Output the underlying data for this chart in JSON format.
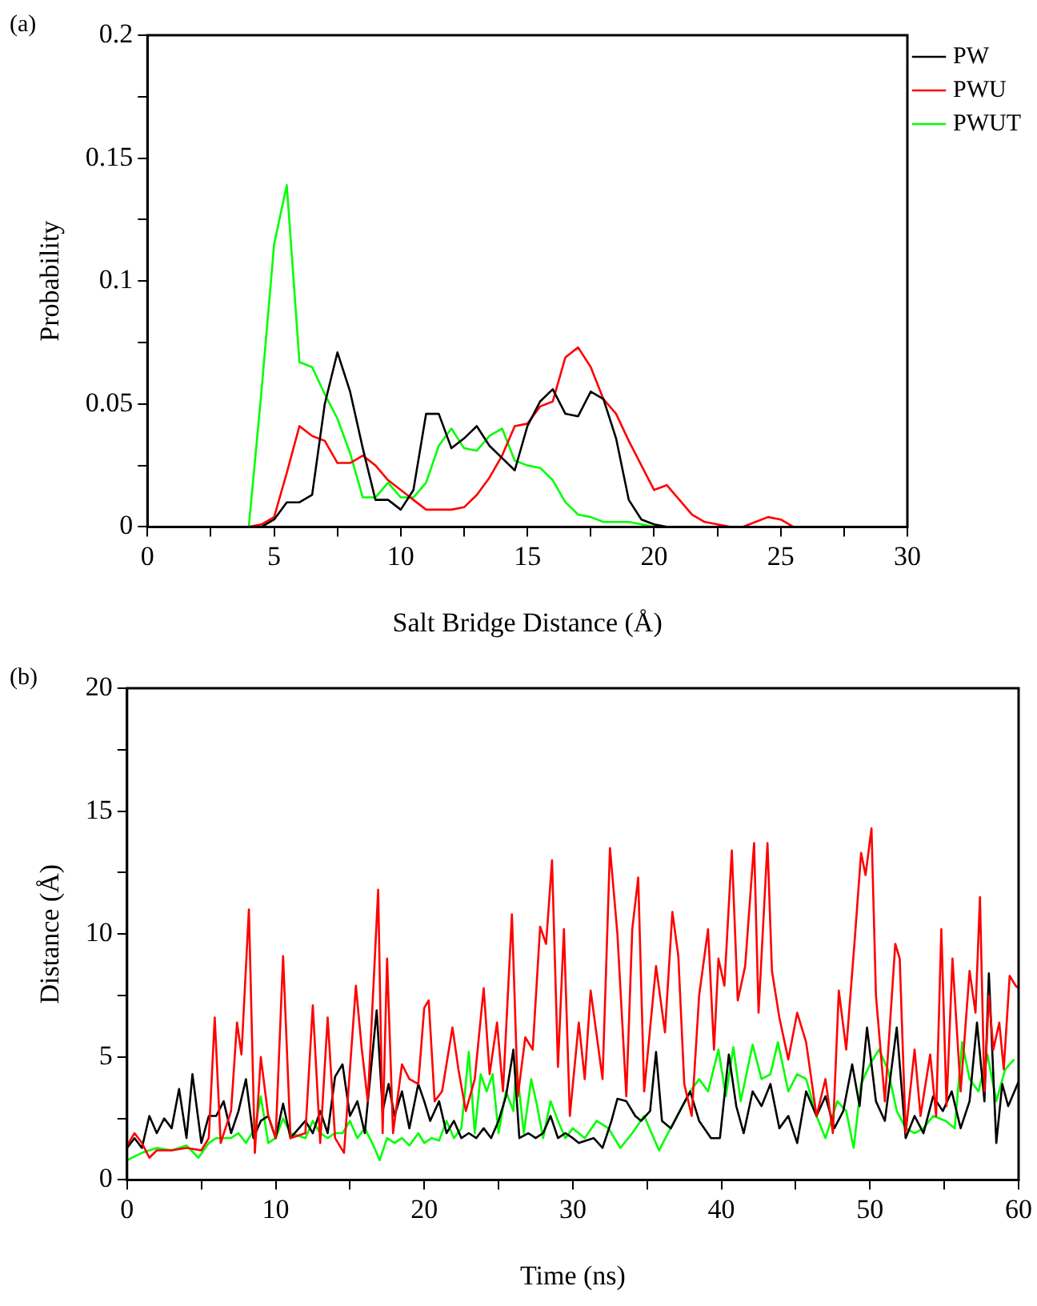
{
  "chart_data": [
    {
      "type": "line",
      "xlabel": "Salt Bridge Distance (Å)",
      "ylabel": "Probability",
      "annotations": [
        "(a)"
      ],
      "xlim": [
        0,
        30
      ],
      "ylim": [
        0,
        0.2
      ],
      "xticks": [
        0,
        {
          "value": 2.5,
          "label": null
        },
        5,
        {
          "value": 7.5,
          "label": null
        },
        10,
        {
          "value": 12.5,
          "label": null
        },
        15,
        {
          "value": 17.5,
          "label": null
        },
        20,
        {
          "value": 22.5,
          "label": null
        },
        25,
        {
          "value": 27.5,
          "label": null
        },
        30
      ],
      "yticks": [
        0,
        {
          "value": 0.025,
          "label": null
        },
        0.05,
        {
          "value": 0.075,
          "label": null
        },
        0.1,
        {
          "value": 0.125,
          "label": null
        },
        0.15,
        {
          "value": 0.175,
          "label": null
        },
        0.2
      ],
      "legend": "top right",
      "marker": "none",
      "line_style": "solid",
      "series": [
        {
          "name": "PW",
          "color": "#000000",
          "x": [
            4.5,
            5,
            5.5,
            6,
            6.5,
            7,
            7.5,
            8,
            8.5,
            9,
            9.5,
            10,
            10.5,
            11,
            11.5,
            12,
            12.5,
            13,
            13.5,
            14,
            14.5,
            15,
            15.5,
            16,
            16.5,
            17,
            17.5,
            18,
            18.5,
            19,
            19.5,
            20,
            20.5
          ],
          "values": [
            0,
            0.003,
            0.01,
            0.01,
            0.013,
            0.05,
            0.071,
            0.055,
            0.032,
            0.011,
            0.011,
            0.007,
            0.015,
            0.046,
            0.046,
            0.032,
            0.036,
            0.041,
            0.033,
            0.028,
            0.023,
            0.041,
            0.051,
            0.056,
            0.046,
            0.045,
            0.055,
            0.052,
            0.036,
            0.011,
            0.003,
            0.001,
            0
          ]
        },
        {
          "name": "PWU",
          "color": "#ff0000",
          "x": [
            4,
            4.5,
            5,
            5.5,
            6,
            6.5,
            7,
            7.5,
            8,
            8.5,
            9,
            9.5,
            10,
            10.5,
            11,
            11.5,
            12,
            12.5,
            13,
            13.5,
            14,
            14.5,
            15,
            15.5,
            16,
            16.5,
            17,
            17.5,
            18,
            18.5,
            19,
            19.5,
            20,
            20.5,
            21,
            21.5,
            22,
            22.5,
            23,
            23.5,
            24,
            24.5,
            25,
            25.5
          ],
          "values": [
            0,
            0.001,
            0.004,
            0.022,
            0.041,
            0.037,
            0.035,
            0.026,
            0.026,
            0.029,
            0.025,
            0.019,
            0.015,
            0.011,
            0.007,
            0.007,
            0.007,
            0.008,
            0.013,
            0.02,
            0.029,
            0.041,
            0.042,
            0.049,
            0.051,
            0.069,
            0.073,
            0.065,
            0.052,
            0.046,
            0.035,
            0.025,
            0.015,
            0.017,
            0.011,
            0.005,
            0.002,
            0.001,
            0,
            0,
            0.002,
            0.004,
            0.003,
            0
          ]
        },
        {
          "name": "PWUT",
          "color": "#00ff00",
          "x": [
            4,
            4.5,
            5,
            5.5,
            6,
            6.5,
            7,
            7.5,
            8,
            8.5,
            9,
            9.5,
            10,
            10.5,
            11,
            11.5,
            12,
            12.5,
            13,
            13.5,
            14,
            14.5,
            15,
            15.5,
            16,
            16.5,
            17,
            17.5,
            18,
            18.5,
            19,
            19.5,
            20
          ],
          "values": [
            0,
            0.055,
            0.115,
            0.139,
            0.067,
            0.065,
            0.054,
            0.044,
            0.03,
            0.012,
            0.012,
            0.018,
            0.012,
            0.012,
            0.018,
            0.033,
            0.04,
            0.032,
            0.031,
            0.037,
            0.04,
            0.027,
            0.025,
            0.024,
            0.019,
            0.01,
            0.005,
            0.004,
            0.002,
            0.002,
            0.002,
            0.001,
            0
          ]
        }
      ]
    },
    {
      "type": "line",
      "xlabel": "Time (ns)",
      "ylabel": "Distance (Å)",
      "annotations": [
        "(b)"
      ],
      "xlim": [
        0,
        60
      ],
      "ylim": [
        0,
        20
      ],
      "xticks": [
        0,
        {
          "value": 5,
          "label": null
        },
        10,
        {
          "value": 15,
          "label": null
        },
        20,
        {
          "value": 25,
          "label": null
        },
        30,
        {
          "value": 35,
          "label": null
        },
        40,
        {
          "value": 45,
          "label": null
        },
        50,
        {
          "value": 55,
          "label": null
        },
        60
      ],
      "yticks": [
        0,
        {
          "value": 2.5,
          "label": null
        },
        5,
        {
          "value": 7.5,
          "label": null
        },
        10,
        {
          "value": 12.5,
          "label": null
        },
        15,
        {
          "value": 17.5,
          "label": null
        },
        20
      ],
      "marker": "none",
      "line_style": "solid",
      "series": [
        {
          "color": "#ff0000",
          "x": [
            0,
            0.5,
            1,
            1.5,
            2,
            3,
            4,
            5,
            5.5,
            5.9,
            6.3,
            7,
            7.4,
            7.7,
            8.2,
            8.6,
            9,
            9.5,
            10,
            10.5,
            11,
            12,
            12.5,
            13,
            13.5,
            14,
            14.6,
            15,
            15.4,
            15.8,
            16.2,
            16.9,
            17.2,
            17.5,
            17.9,
            18.5,
            19,
            19.6,
            20,
            20.3,
            20.7,
            21.2,
            21.9,
            22.3,
            22.8,
            23.4,
            24,
            24.4,
            24.9,
            25.3,
            25.9,
            26.3,
            26.8,
            27.3,
            27.8,
            28.2,
            28.6,
            29,
            29.4,
            29.8,
            30.4,
            30.8,
            31.2,
            32,
            32.5,
            33,
            33.6,
            34,
            34.4,
            34.8,
            35.6,
            36.2,
            36.7,
            37.1,
            37.5,
            38,
            38.5,
            39.1,
            39.5,
            39.8,
            40.2,
            40.7,
            41.1,
            41.6,
            42.2,
            42.5,
            43.1,
            43.4,
            43.9,
            44.5,
            45.1,
            45.7,
            46.4,
            47,
            47.5,
            47.9,
            48.4,
            49,
            49.4,
            49.7,
            50.1,
            50.4,
            51,
            51.7,
            52,
            52.4,
            53,
            53.4,
            54.05,
            54.45,
            54.8,
            55.15,
            55.55,
            56.1,
            56.7,
            57.1,
            57.4,
            57.7,
            58,
            58.3,
            58.7,
            59,
            59.4,
            59.8,
            60
          ],
          "values": [
            1.4,
            1.9,
            1.5,
            0.9,
            1.2,
            1.2,
            1.3,
            1.2,
            1.7,
            6.6,
            1.5,
            2.8,
            6.4,
            5.1,
            11,
            1.1,
            5,
            2.6,
            1.7,
            9.1,
            1.7,
            1.9,
            7.1,
            1.5,
            6.6,
            1.7,
            1.1,
            4.5,
            7.9,
            5.3,
            3.2,
            11.8,
            1.9,
            9,
            1.9,
            4.7,
            4.1,
            3.9,
            7,
            7.3,
            3.2,
            3.6,
            6.2,
            4.5,
            2.8,
            4.1,
            7.8,
            4.3,
            6.4,
            3.6,
            10.8,
            3.4,
            5.8,
            5.3,
            10.3,
            9.6,
            13,
            4.6,
            10.2,
            2.6,
            6.4,
            4.1,
            7.7,
            4.1,
            13.5,
            10,
            3.4,
            10.2,
            12.3,
            3.6,
            8.7,
            6,
            10.9,
            9.1,
            3.9,
            2.6,
            7.5,
            10.2,
            5.3,
            9,
            7.9,
            13.4,
            7.3,
            8.7,
            13.7,
            6.8,
            13.7,
            8.5,
            6.6,
            4.9,
            6.8,
            5.6,
            2.6,
            4.1,
            1.9,
            7.7,
            5.3,
            10,
            13.3,
            12.4,
            14.3,
            7.5,
            3.2,
            9.6,
            9,
            1.9,
            5.3,
            2.6,
            5.1,
            2.6,
            10.2,
            3,
            9,
            3.6,
            8.5,
            6.8,
            11.5,
            3.6,
            7.5,
            5.3,
            6.4,
            4.5,
            8.3,
            7.9,
            7.8
          ]
        },
        {
          "color": "#000000",
          "x": [
            0,
            0.5,
            1,
            1.5,
            2,
            2.5,
            3,
            3.5,
            4,
            4.4,
            5,
            5.5,
            6,
            6.5,
            7,
            7.5,
            8,
            8.5,
            9,
            9.5,
            10,
            10.5,
            11,
            12,
            12.5,
            13,
            13.5,
            14,
            14.5,
            15,
            15.5,
            16,
            16.8,
            17.2,
            17.6,
            18,
            18.5,
            19,
            19.6,
            20,
            20.4,
            21,
            21.5,
            22,
            22.5,
            23,
            23.5,
            24,
            24.5,
            25,
            25.5,
            26,
            26.4,
            27,
            27.5,
            28,
            28.5,
            29,
            29.5,
            30,
            30.4,
            31.4,
            32,
            32.6,
            33,
            33.6,
            34.2,
            34.6,
            35.2,
            35.6,
            36,
            36.6,
            37.2,
            37.9,
            38.5,
            39.3,
            39.9,
            40.5,
            41,
            41.5,
            42.1,
            42.7,
            43.3,
            43.9,
            44.5,
            45.1,
            45.7,
            46.4,
            47,
            47.6,
            48.2,
            48.8,
            49.3,
            49.8,
            50.4,
            51,
            51.8,
            52.4,
            53,
            53.6,
            54.25,
            54.9,
            55.5,
            56.1,
            56.7,
            57.2,
            57.7,
            58,
            58.5,
            58.9,
            59.3,
            60
          ],
          "values": [
            1.3,
            1.7,
            1.3,
            2.6,
            1.9,
            2.5,
            2.1,
            3.7,
            1.7,
            4.3,
            1.5,
            2.6,
            2.6,
            3.2,
            1.9,
            2.8,
            4.1,
            1.7,
            2.4,
            2.6,
            1.7,
            3.1,
            1.7,
            2.4,
            1.9,
            2.8,
            1.9,
            4.2,
            4.7,
            2.6,
            3.2,
            1.9,
            6.9,
            2.8,
            3.9,
            2.6,
            3.6,
            2.1,
            3.9,
            3.2,
            2.4,
            3.2,
            1.9,
            2.4,
            1.7,
            1.9,
            1.7,
            2.1,
            1.7,
            2.4,
            3.4,
            5.3,
            1.7,
            1.9,
            1.7,
            1.9,
            2.6,
            1.7,
            1.9,
            1.7,
            1.5,
            1.7,
            1.3,
            2.4,
            3.3,
            3.2,
            2.6,
            2.4,
            2.8,
            5.2,
            2.4,
            2.1,
            2.8,
            3.6,
            2.4,
            1.7,
            1.7,
            5.1,
            3,
            1.9,
            3.6,
            3,
            3.9,
            2.1,
            2.6,
            1.5,
            3.6,
            2.6,
            3.4,
            2.1,
            2.8,
            4.7,
            3,
            6.2,
            3.2,
            2.4,
            6.2,
            1.7,
            2.6,
            1.9,
            3.4,
            2.8,
            3.6,
            2.1,
            3.2,
            6.4,
            3.2,
            8.4,
            1.5,
            3.9,
            3,
            4
          ]
        },
        {
          "color": "#00ff00",
          "x": [
            0,
            1,
            2,
            3,
            4,
            4.8,
            5.5,
            6,
            7,
            7.5,
            8,
            8.6,
            9,
            9.5,
            10,
            10.5,
            11,
            12,
            12.5,
            13,
            13.5,
            14,
            14.5,
            15,
            15.5,
            16,
            16.5,
            17,
            17.5,
            18,
            18.5,
            19,
            19.6,
            20,
            20.5,
            21,
            21.5,
            22,
            22.5,
            23,
            23.4,
            23.8,
            24.2,
            24.6,
            25,
            25.5,
            26,
            26.2,
            26.7,
            27.2,
            27.6,
            28,
            28.5,
            29,
            29.5,
            30,
            30.8,
            31.6,
            32.4,
            33.2,
            34,
            34.8,
            35.8,
            36.4,
            37.2,
            37.9,
            38.5,
            39.1,
            39.8,
            40.3,
            40.8,
            41.3,
            42.1,
            42.7,
            43.3,
            43.8,
            44.5,
            45.1,
            45.7,
            46.4,
            47,
            47.8,
            48.4,
            48.9,
            49.4,
            50,
            50.6,
            51.2,
            51.8,
            52.4,
            53,
            53.6,
            54.25,
            55.1,
            55.7,
            56.2,
            56.7,
            57.3,
            57.9,
            58.5,
            59.1,
            59.7
          ],
          "values": [
            0.8,
            1.1,
            1.3,
            1.2,
            1.4,
            0.9,
            1.5,
            1.7,
            1.7,
            1.9,
            1.5,
            2.1,
            3.4,
            1.5,
            1.7,
            2.5,
            1.9,
            1.7,
            2.4,
            1.9,
            1.7,
            1.9,
            1.9,
            2.4,
            1.7,
            2.1,
            1.5,
            0.8,
            1.7,
            1.5,
            1.7,
            1.4,
            1.9,
            1.5,
            1.7,
            1.6,
            2.4,
            1.7,
            2.1,
            5.2,
            1.9,
            4.3,
            3.6,
            4.3,
            1.9,
            3.6,
            2.8,
            4.7,
            1.9,
            4.1,
            3,
            1.7,
            3.2,
            2.4,
            1.7,
            2.1,
            1.7,
            2.4,
            2.1,
            1.3,
            1.9,
            2.6,
            1.2,
            1.9,
            2.8,
            3.6,
            4.1,
            3.6,
            5.3,
            3.4,
            5.4,
            3.2,
            5.5,
            4.1,
            4.3,
            5.6,
            3.6,
            4.3,
            4.1,
            2.6,
            1.7,
            3.2,
            2.8,
            1.3,
            3.9,
            4.7,
            5.3,
            4.5,
            2.8,
            2.1,
            1.9,
            2.1,
            2.6,
            2.4,
            2.1,
            5.6,
            4.1,
            3.6,
            5.1,
            3.2,
            4.5,
            4.9
          ]
        }
      ]
    }
  ]
}
